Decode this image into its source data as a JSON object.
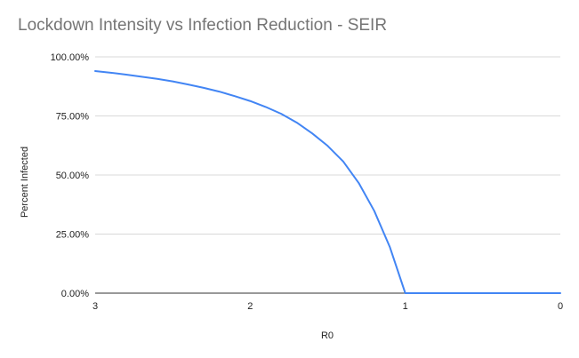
{
  "chart_data": {
    "type": "line",
    "title": "Lockdown Intensity vs Infection Reduction - SEIR",
    "xlabel": "R0",
    "ylabel": "Percent Infected",
    "x_axis_reversed": true,
    "xlim": [
      3,
      0
    ],
    "ylim": [
      0,
      100
    ],
    "x_ticks": [
      "3",
      "2",
      "1",
      "0"
    ],
    "y_ticks": [
      "0.00%",
      "25.00%",
      "50.00%",
      "75.00%",
      "100.00%"
    ],
    "grid": true,
    "legend": "none",
    "series": [
      {
        "color": "#4285f4",
        "x": [
          3.0,
          2.9,
          2.8,
          2.7,
          2.6,
          2.5,
          2.4,
          2.3,
          2.2,
          2.1,
          2.0,
          1.9,
          1.8,
          1.7,
          1.6,
          1.5,
          1.4,
          1.3,
          1.2,
          1.1,
          1.0,
          0.9,
          0.8,
          0.7,
          0.6,
          0.5,
          0.4,
          0.3,
          0.2,
          0.1,
          0.0
        ],
        "values": [
          94.0,
          93.3,
          92.5,
          91.6,
          90.7,
          89.6,
          88.3,
          86.9,
          85.3,
          83.4,
          81.3,
          78.8,
          75.9,
          72.2,
          67.6,
          62.3,
          55.7,
          46.6,
          34.8,
          19.6,
          0.0,
          0,
          0,
          0,
          0,
          0,
          0,
          0,
          0,
          0,
          0
        ]
      }
    ]
  }
}
